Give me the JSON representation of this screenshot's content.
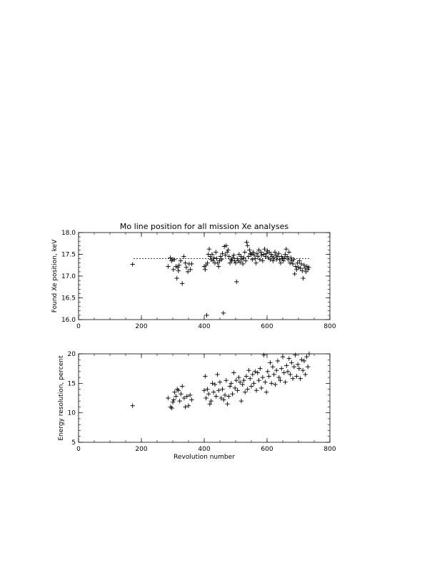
{
  "chart_data": [
    {
      "type": "scatter",
      "title": "Mo line position for all mission Xe analyses",
      "xlabel": "",
      "ylabel": "Found Xe position, keV",
      "xlim": [
        0,
        800
      ],
      "ylim": [
        16.0,
        18.0
      ],
      "xticks": [
        "0",
        "200",
        "400",
        "600",
        "800"
      ],
      "yticks": [
        "16.0",
        "16.5",
        "17.0",
        "17.5",
        "18.0"
      ],
      "marker": "+",
      "reference_line": {
        "style": "dashed",
        "x": [
          175,
          735
        ],
        "y": 17.4
      },
      "series": [
        {
          "x": [
            172,
            285,
            292,
            296,
            300,
            302,
            305,
            310,
            313,
            316,
            318,
            320,
            325,
            330,
            335,
            340,
            343,
            348,
            352,
            356,
            360,
            400,
            403,
            406,
            408,
            410,
            413,
            416,
            419,
            422,
            425,
            428,
            431,
            434,
            437,
            440,
            443,
            446,
            449,
            452,
            455,
            458,
            461,
            464,
            467,
            470,
            473,
            476,
            479,
            482,
            485,
            488,
            491,
            494,
            497,
            500,
            503,
            505,
            508,
            511,
            514,
            517,
            520,
            523,
            526,
            529,
            532,
            535,
            538,
            541,
            544,
            547,
            550,
            553,
            556,
            559,
            562,
            565,
            568,
            571,
            574,
            577,
            580,
            583,
            586,
            589,
            592,
            595,
            598,
            601,
            604,
            607,
            610,
            613,
            616,
            619,
            622,
            625,
            628,
            631,
            634,
            637,
            640,
            643,
            646,
            649,
            652,
            655,
            658,
            661,
            664,
            667,
            670,
            673,
            676,
            679,
            682,
            685,
            688,
            691,
            694,
            697,
            700,
            703,
            706,
            709,
            712,
            715,
            718,
            721,
            724,
            727,
            730,
            733
          ],
          "y": [
            17.27,
            17.22,
            17.42,
            17.35,
            17.38,
            17.15,
            17.38,
            17.22,
            16.95,
            17.2,
            17.12,
            17.25,
            17.35,
            16.83,
            17.45,
            17.3,
            17.2,
            17.1,
            17.28,
            17.15,
            17.28,
            17.22,
            17.15,
            17.25,
            16.1,
            17.3,
            17.5,
            17.62,
            17.45,
            17.38,
            17.5,
            17.35,
            17.42,
            17.3,
            17.55,
            17.4,
            17.3,
            17.22,
            17.35,
            17.45,
            17.38,
            17.52,
            16.15,
            17.68,
            17.48,
            17.7,
            17.55,
            17.6,
            17.45,
            17.3,
            17.38,
            17.35,
            17.42,
            17.48,
            17.35,
            17.3,
            16.87,
            17.4,
            17.35,
            17.5,
            17.32,
            17.45,
            17.38,
            17.28,
            17.42,
            17.55,
            17.35,
            17.78,
            17.7,
            17.45,
            17.6,
            17.52,
            17.5,
            17.38,
            17.55,
            17.48,
            17.4,
            17.3,
            17.52,
            17.45,
            17.6,
            17.38,
            17.55,
            17.48,
            17.35,
            17.5,
            17.62,
            17.45,
            17.52,
            17.58,
            17.42,
            17.55,
            17.38,
            17.5,
            17.45,
            17.35,
            17.42,
            17.55,
            17.48,
            17.38,
            17.45,
            17.52,
            17.38,
            17.3,
            17.45,
            17.4,
            17.35,
            17.42,
            17.5,
            17.62,
            17.45,
            17.38,
            17.55,
            17.3,
            17.42,
            17.35,
            17.28,
            17.38,
            17.05,
            17.22,
            17.15,
            17.3,
            17.2,
            17.35,
            17.18,
            17.28,
            17.12,
            16.95,
            17.25,
            17.18,
            17.1,
            17.22,
            17.15,
            17.2
          ]
        }
      ]
    },
    {
      "type": "scatter",
      "title": "",
      "xlabel": "Revolution number",
      "ylabel": "Energy resolution, percent",
      "xlim": [
        0,
        800
      ],
      "ylim": [
        5,
        20
      ],
      "xticks": [
        "0",
        "200",
        "400",
        "600",
        "800"
      ],
      "yticks": [
        "5",
        "10",
        "15",
        "20"
      ],
      "marker": "+",
      "series": [
        {
          "x": [
            172,
            285,
            293,
            297,
            300,
            303,
            306,
            310,
            314,
            318,
            322,
            326,
            330,
            336,
            340,
            345,
            350,
            355,
            360,
            400,
            403,
            406,
            410,
            414,
            418,
            422,
            426,
            430,
            434,
            438,
            442,
            446,
            450,
            454,
            458,
            462,
            466,
            470,
            474,
            478,
            482,
            486,
            490,
            494,
            498,
            502,
            506,
            510,
            514,
            518,
            522,
            526,
            530,
            534,
            538,
            542,
            546,
            550,
            554,
            558,
            562,
            566,
            570,
            574,
            578,
            582,
            586,
            590,
            594,
            598,
            602,
            606,
            610,
            614,
            618,
            622,
            626,
            630,
            634,
            638,
            642,
            646,
            650,
            654,
            658,
            662,
            666,
            670,
            674,
            678,
            682,
            686,
            690,
            694,
            698,
            702,
            706,
            710,
            714,
            718,
            722,
            726,
            730,
            734
          ],
          "y": [
            11.2,
            12.5,
            11.0,
            10.8,
            11.8,
            12.2,
            13.5,
            12.8,
            14.0,
            13.8,
            12.0,
            13.2,
            14.5,
            12.5,
            11.0,
            12.8,
            11.2,
            13.0,
            12.2,
            13.8,
            16.2,
            12.5,
            14.0,
            13.2,
            11.5,
            12.0,
            15.0,
            13.5,
            14.8,
            12.8,
            16.5,
            13.8,
            15.2,
            12.5,
            14.0,
            12.2,
            13.0,
            15.5,
            11.5,
            12.8,
            14.5,
            15.0,
            13.2,
            16.8,
            14.2,
            15.5,
            13.8,
            16.0,
            15.2,
            12.0,
            14.8,
            15.5,
            13.5,
            16.2,
            14.0,
            17.2,
            15.8,
            14.5,
            16.5,
            15.0,
            17.0,
            13.8,
            16.8,
            15.5,
            17.5,
            14.2,
            16.0,
            19.8,
            15.2,
            13.5,
            17.0,
            16.2,
            18.5,
            15.0,
            17.8,
            16.5,
            14.8,
            17.2,
            18.8,
            16.0,
            15.5,
            17.5,
            19.5,
            16.8,
            15.2,
            18.0,
            17.0,
            19.2,
            16.5,
            18.5,
            15.8,
            17.8,
            19.8,
            16.2,
            18.2,
            17.5,
            15.8,
            19.0,
            17.2,
            18.8,
            16.5,
            19.5,
            17.8,
            20.0
          ]
        }
      ]
    }
  ]
}
